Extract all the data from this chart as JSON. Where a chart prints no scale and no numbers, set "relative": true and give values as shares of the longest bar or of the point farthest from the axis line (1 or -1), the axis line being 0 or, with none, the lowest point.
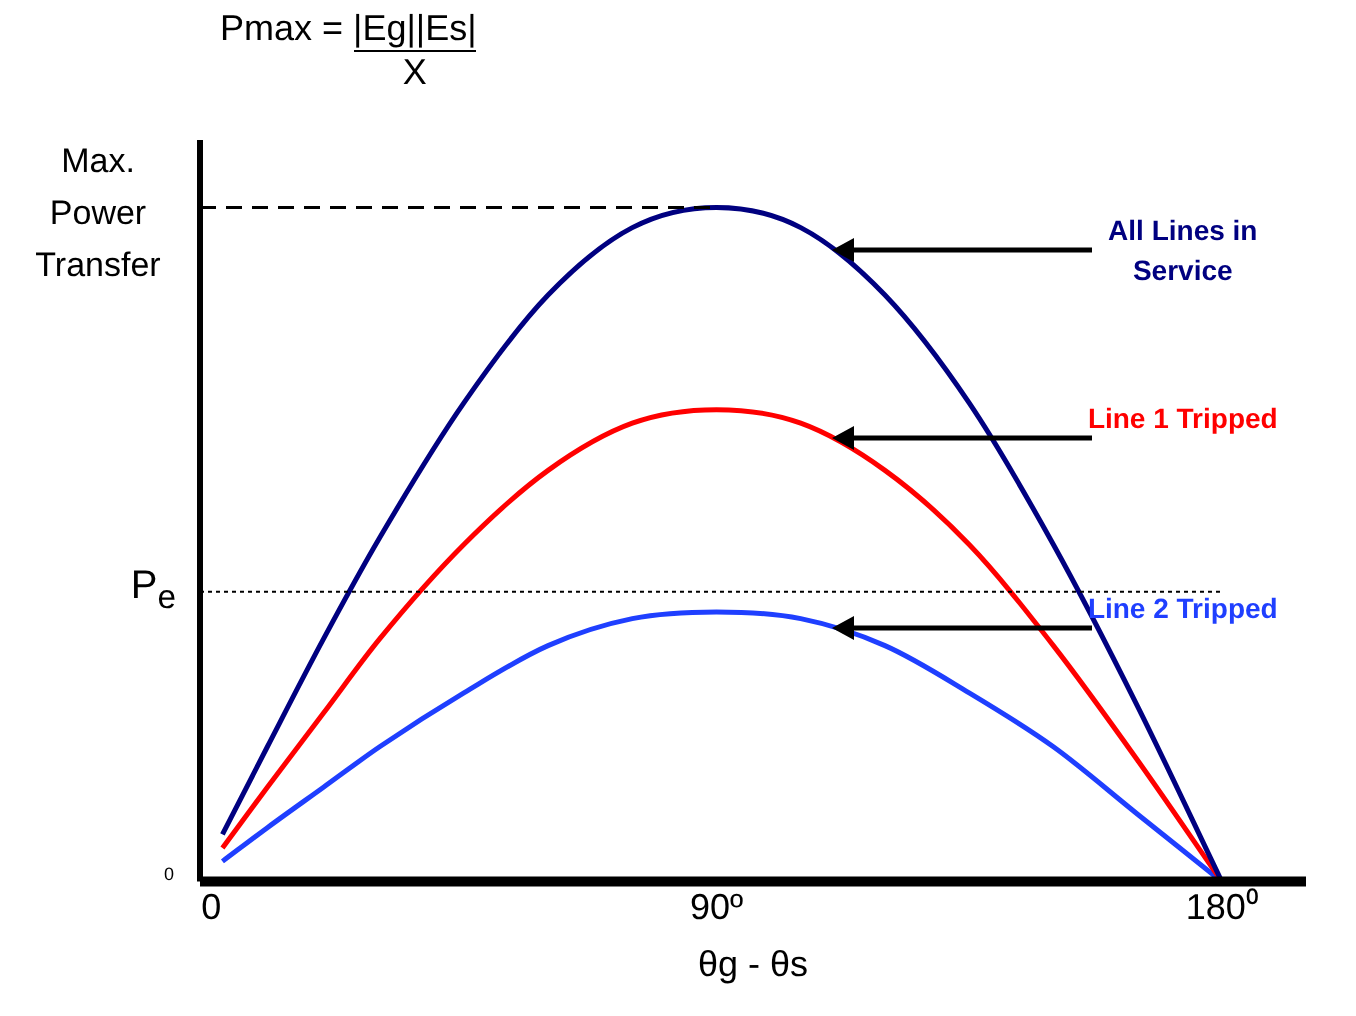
{
  "chart_data": {
    "type": "line",
    "title": "Pmax = |Eg||Es|",
    "subtitle": "X",
    "xlabel": "θg - θs",
    "relative": true,
    "xlim": [
      -2,
      195
    ],
    "xticks": [
      0,
      {
        "value": 90,
        "label": "90º"
      },
      {
        "value": 180,
        "label": "180⁰"
      }
    ],
    "x": [
      2,
      10,
      20,
      30,
      45,
      60,
      75,
      90,
      105,
      120,
      135,
      150,
      165,
      180
    ],
    "series": [
      {
        "name": "All Lines in Service",
        "color": "#000080",
        "values": [
          0.07,
          0.2,
          0.36,
          0.51,
          0.71,
          0.87,
          0.97,
          1.0,
          0.97,
          0.87,
          0.71,
          0.5,
          0.26,
          0
        ]
      },
      {
        "name": "Line 1 Tripped",
        "color": "#ff0000",
        "values": [
          0.05,
          0.14,
          0.25,
          0.36,
          0.5,
          0.61,
          0.68,
          0.7,
          0.68,
          0.61,
          0.5,
          0.35,
          0.18,
          0
        ]
      },
      {
        "name": "Line 2 Tripped",
        "color": "#1f3fff",
        "values": [
          0.03,
          0.08,
          0.14,
          0.2,
          0.28,
          0.35,
          0.39,
          0.4,
          0.39,
          0.35,
          0.28,
          0.2,
          0.1,
          0
        ]
      }
    ],
    "ref_lines": [
      {
        "axis": "y",
        "value": 1,
        "label": "Max. Power Transfer",
        "line_style": "dashed"
      },
      {
        "axis": "y",
        "value": 0.43,
        "label": "P$_{e}$",
        "line_style": "dotted"
      }
    ],
    "annotations": [
      "0"
    ],
    "grid": false,
    "legend": false,
    "marker": "none",
    "line_style": "solid"
  }
}
